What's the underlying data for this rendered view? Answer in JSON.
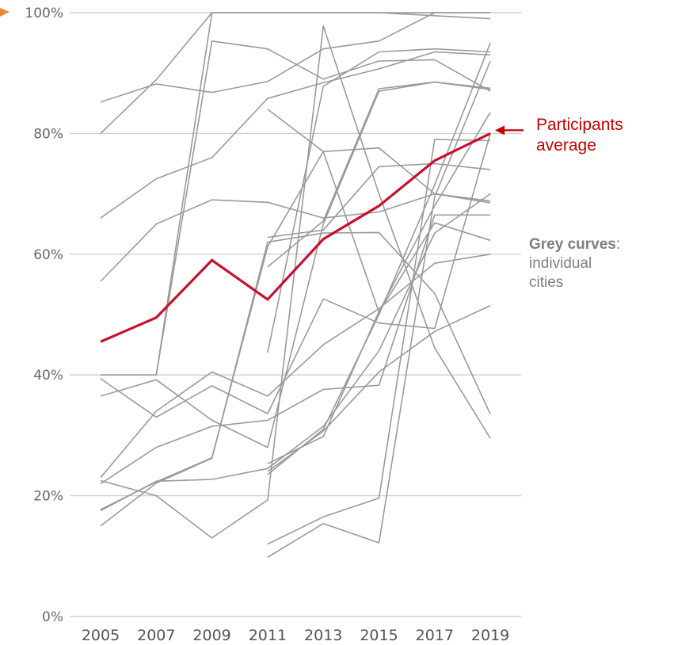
{
  "chart_data": {
    "type": "line",
    "x": [
      2005,
      2007,
      2009,
      2011,
      2013,
      2015,
      2017,
      2019
    ],
    "x_tick_labels": [
      "2005",
      "2007",
      "2009",
      "2011",
      "2013",
      "2015",
      "2017",
      "2019"
    ],
    "y_tick_labels": [
      "0%",
      "20%",
      "40%",
      "60%",
      "80%",
      "100%"
    ],
    "y_ticks": [
      0,
      20,
      40,
      60,
      80,
      100
    ],
    "ylim": [
      0,
      100
    ],
    "grid": "horizontal",
    "highlight_series": {
      "name": "Participants average",
      "values": [
        45.5,
        49.5,
        59,
        52.5,
        62.5,
        68,
        75.5,
        80
      ]
    },
    "series": [
      {
        "values": [
          85.2,
          88.2,
          86.8,
          88.6,
          94,
          95.3,
          100,
          100
        ]
      },
      {
        "values": [
          80,
          88.9,
          100,
          100,
          100,
          100,
          100,
          100
        ]
      },
      {
        "values": [
          40,
          40,
          95.3,
          94,
          89,
          92,
          92.2,
          87
        ]
      },
      {
        "values": [
          40,
          40,
          100,
          100,
          100,
          100,
          99.5,
          99
        ]
      },
      {
        "values": [
          66,
          72.5,
          76,
          85.8,
          88.4,
          90.7,
          93.5,
          93
        ]
      },
      {
        "values": [
          55.5,
          65,
          69,
          68.6,
          66,
          67,
          70,
          68.5
        ]
      },
      {
        "values": [
          36.5,
          39.2,
          32.5,
          28,
          65,
          87,
          88.5,
          87.5
        ]
      },
      {
        "values": [
          39.4,
          33,
          38.2,
          33.6,
          52.6,
          48.6,
          47.7,
          80
        ]
      },
      {
        "values": [
          23,
          34,
          40.5,
          36.5,
          45,
          51,
          58.5,
          60
        ]
      },
      {
        "values": [
          22,
          28,
          31.5,
          32.5,
          37.6,
          38.3,
          66.5,
          66.5
        ]
      },
      {
        "values": [
          22.5,
          20,
          13,
          19.3,
          97.8,
          70,
          44.5,
          29.5
        ]
      },
      {
        "values": [
          17.5,
          22.4,
          22.7,
          24.5,
          31.5,
          44,
          63.5,
          70
        ]
      },
      {
        "values": [
          15,
          22.1,
          26.2,
          62,
          63.5,
          63.6,
          53.5,
          33.5
        ]
      },
      {
        "values": [
          17.7,
          22.3,
          26.3,
          61.2,
          77,
          50.4,
          65.2,
          62.3
        ]
      },
      {
        "values": [
          null,
          null,
          null,
          84,
          77,
          77.6,
          70,
          68.8
        ]
      },
      {
        "values": [
          null,
          null,
          null,
          62.8,
          64,
          74.5,
          75,
          74
        ]
      },
      {
        "values": [
          null,
          null,
          null,
          57.9,
          65.5,
          87.4,
          88.5,
          87.3
        ]
      },
      {
        "values": [
          null,
          null,
          null,
          43.7,
          87.8,
          93.5,
          94,
          93.5
        ]
      },
      {
        "values": [
          null,
          null,
          null,
          23.5,
          31,
          50,
          71.5,
          95
        ]
      },
      {
        "values": [
          null,
          null,
          null,
          25.3,
          29.8,
          50.5,
          68,
          83.5
        ]
      },
      {
        "values": [
          null,
          null,
          null,
          24,
          30.7,
          40.5,
          47.2,
          51.5
        ]
      },
      {
        "values": [
          null,
          null,
          null,
          12,
          16.5,
          19.6,
          79,
          78.8
        ]
      },
      {
        "values": [
          null,
          null,
          null,
          9.8,
          15.4,
          12.2,
          69.5,
          92
        ]
      }
    ],
    "annotations": {
      "average_label_lines": [
        "Participants",
        "average"
      ],
      "grey_label_bold": "Grey curves",
      "grey_label_colon": ":",
      "grey_label_lines": [
        "individual",
        "cities"
      ]
    }
  },
  "colors": {
    "average": "#c8102e",
    "cities": "#9a9a9a",
    "grid": "#cfcfcf",
    "annotation_red": "#c00000",
    "annotation_grey": "#7f7f7f",
    "edge_arrow": "#e8853d"
  }
}
